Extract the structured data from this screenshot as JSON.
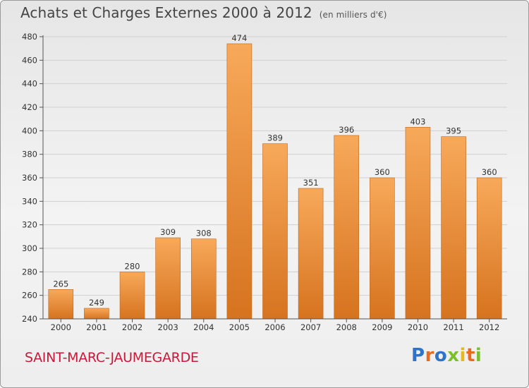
{
  "header": {
    "title": "Achats et Charges Externes 2000 à 2012",
    "unit": "(en milliers d'€)"
  },
  "footer": {
    "city": "SAINT-MARC-JAUMEGARDE",
    "logo": "Proxiti"
  },
  "colors": {
    "bar_top": "#f7a95a",
    "bar_bottom": "#d6731f",
    "bar_edge": "#c0661a",
    "grid": "#d0d0d0",
    "city": "#c71a3a"
  },
  "chart_data": {
    "type": "bar",
    "title": "Achats et Charges Externes 2000 à 2012",
    "subtitle": "(en milliers d'€)",
    "categories": [
      "2000",
      "2001",
      "2002",
      "2003",
      "2004",
      "2005",
      "2006",
      "2007",
      "2008",
      "2009",
      "2010",
      "2011",
      "2012"
    ],
    "values": [
      265,
      249,
      280,
      309,
      308,
      474,
      389,
      351,
      396,
      360,
      403,
      395,
      360
    ],
    "ylim": [
      240,
      480
    ],
    "yticks": [
      240,
      260,
      280,
      300,
      320,
      340,
      360,
      380,
      400,
      420,
      440,
      460,
      480
    ],
    "grid": true,
    "xlabel": "",
    "ylabel": ""
  }
}
